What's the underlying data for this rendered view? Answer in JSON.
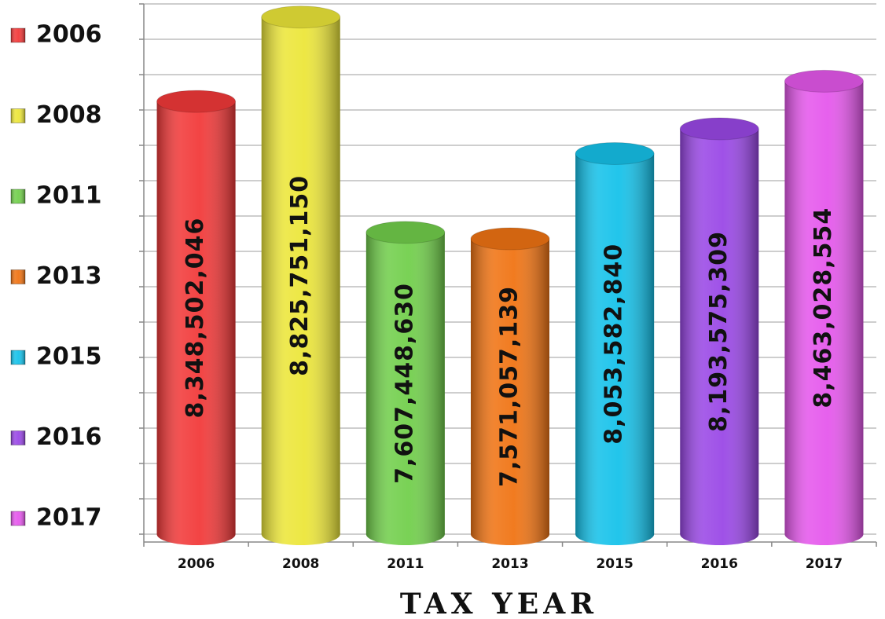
{
  "chart_data": {
    "type": "cylinder_bar",
    "categories": [
      "2006",
      "2008",
      "2011",
      "2013",
      "2015",
      "2016",
      "2017"
    ],
    "values": [
      8348502046,
      8825751150,
      7607448630,
      7571057139,
      8053582840,
      8193575309,
      8463028554
    ],
    "value_labels": [
      "8,348,502,046",
      "8,825,751,150",
      "7,607,448,630",
      "7,571,057,139",
      "8,053,582,840",
      "8,193,575,309",
      "8,463,028,554"
    ],
    "colors": [
      "#f23a3a",
      "#ece63a",
      "#72cf4c",
      "#f07414",
      "#16c2ea",
      "#9a48e6",
      "#e558ec"
    ],
    "x_label": "TAX YEAR",
    "ylim": [
      5900000000,
      8900000000
    ],
    "yticks": [
      5900000000,
      6100000000,
      6300000000,
      6500000000,
      6700000000,
      6900000000,
      7100000000,
      7300000000,
      7500000000,
      7700000000,
      7900000000,
      8100000000,
      8300000000,
      8500000000,
      8700000000,
      8900000000
    ],
    "grid": true,
    "legend": "left"
  }
}
